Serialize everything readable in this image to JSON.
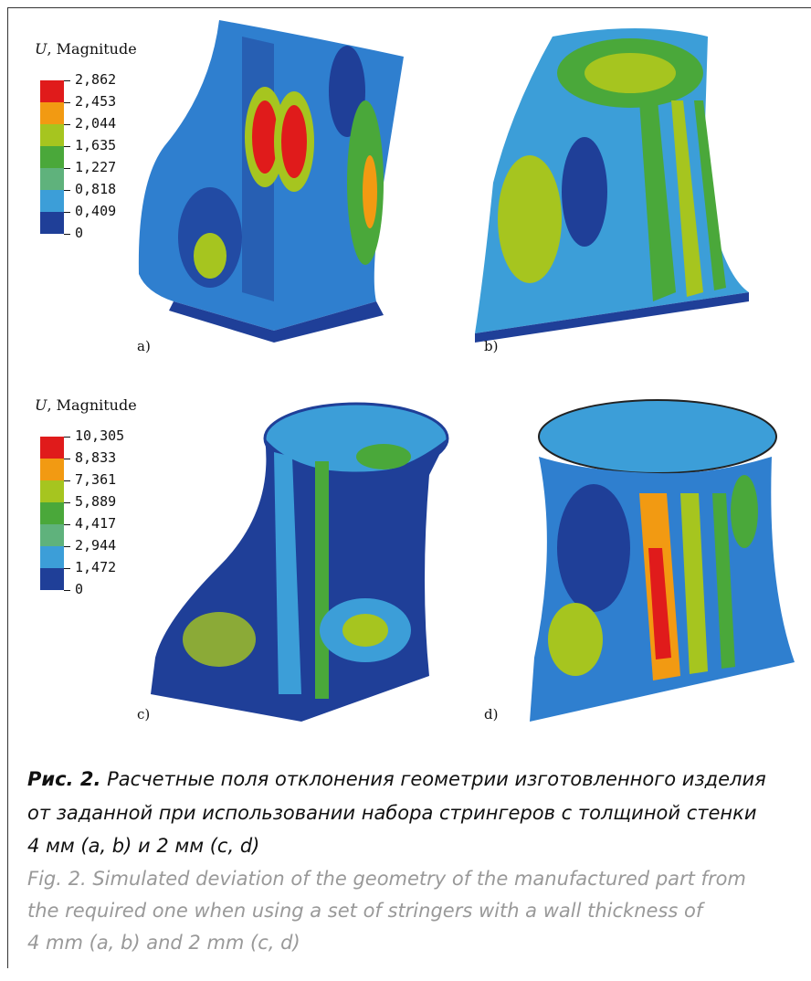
{
  "figure": {
    "legends": [
      {
        "symbol": "U",
        "text": ", Magnitude",
        "labels": [
          "2,862",
          "2,453",
          "2,044",
          "1,635",
          "1,227",
          "0,818",
          "0,409",
          "0"
        ]
      },
      {
        "symbol": "U",
        "text": ", Magnitude",
        "labels": [
          "10,305",
          "8,833",
          "7,361",
          "5,889",
          "4,417",
          "2,944",
          "1,472",
          "0"
        ]
      }
    ],
    "panels": [
      "a)",
      "b)",
      "c)",
      "d)"
    ],
    "caption_ru": {
      "prefix": "Рис. 2.",
      "lines": [
        "Расчетные поля отклонения геометрии изготовленного изделия",
        "от заданной при использовании набора стрингеров с толщиной стенки",
        "4 мм (a, b) и 2 мм (c, d)"
      ]
    },
    "caption_en": {
      "prefix": "Fig. 2.",
      "lines": [
        "Simulated deviation of the geometry of the manufactured part from",
        "the required one when using a set of stringers with a wall thickness of",
        "4 mm (a, b) and 2 mm (c, d)"
      ]
    }
  }
}
